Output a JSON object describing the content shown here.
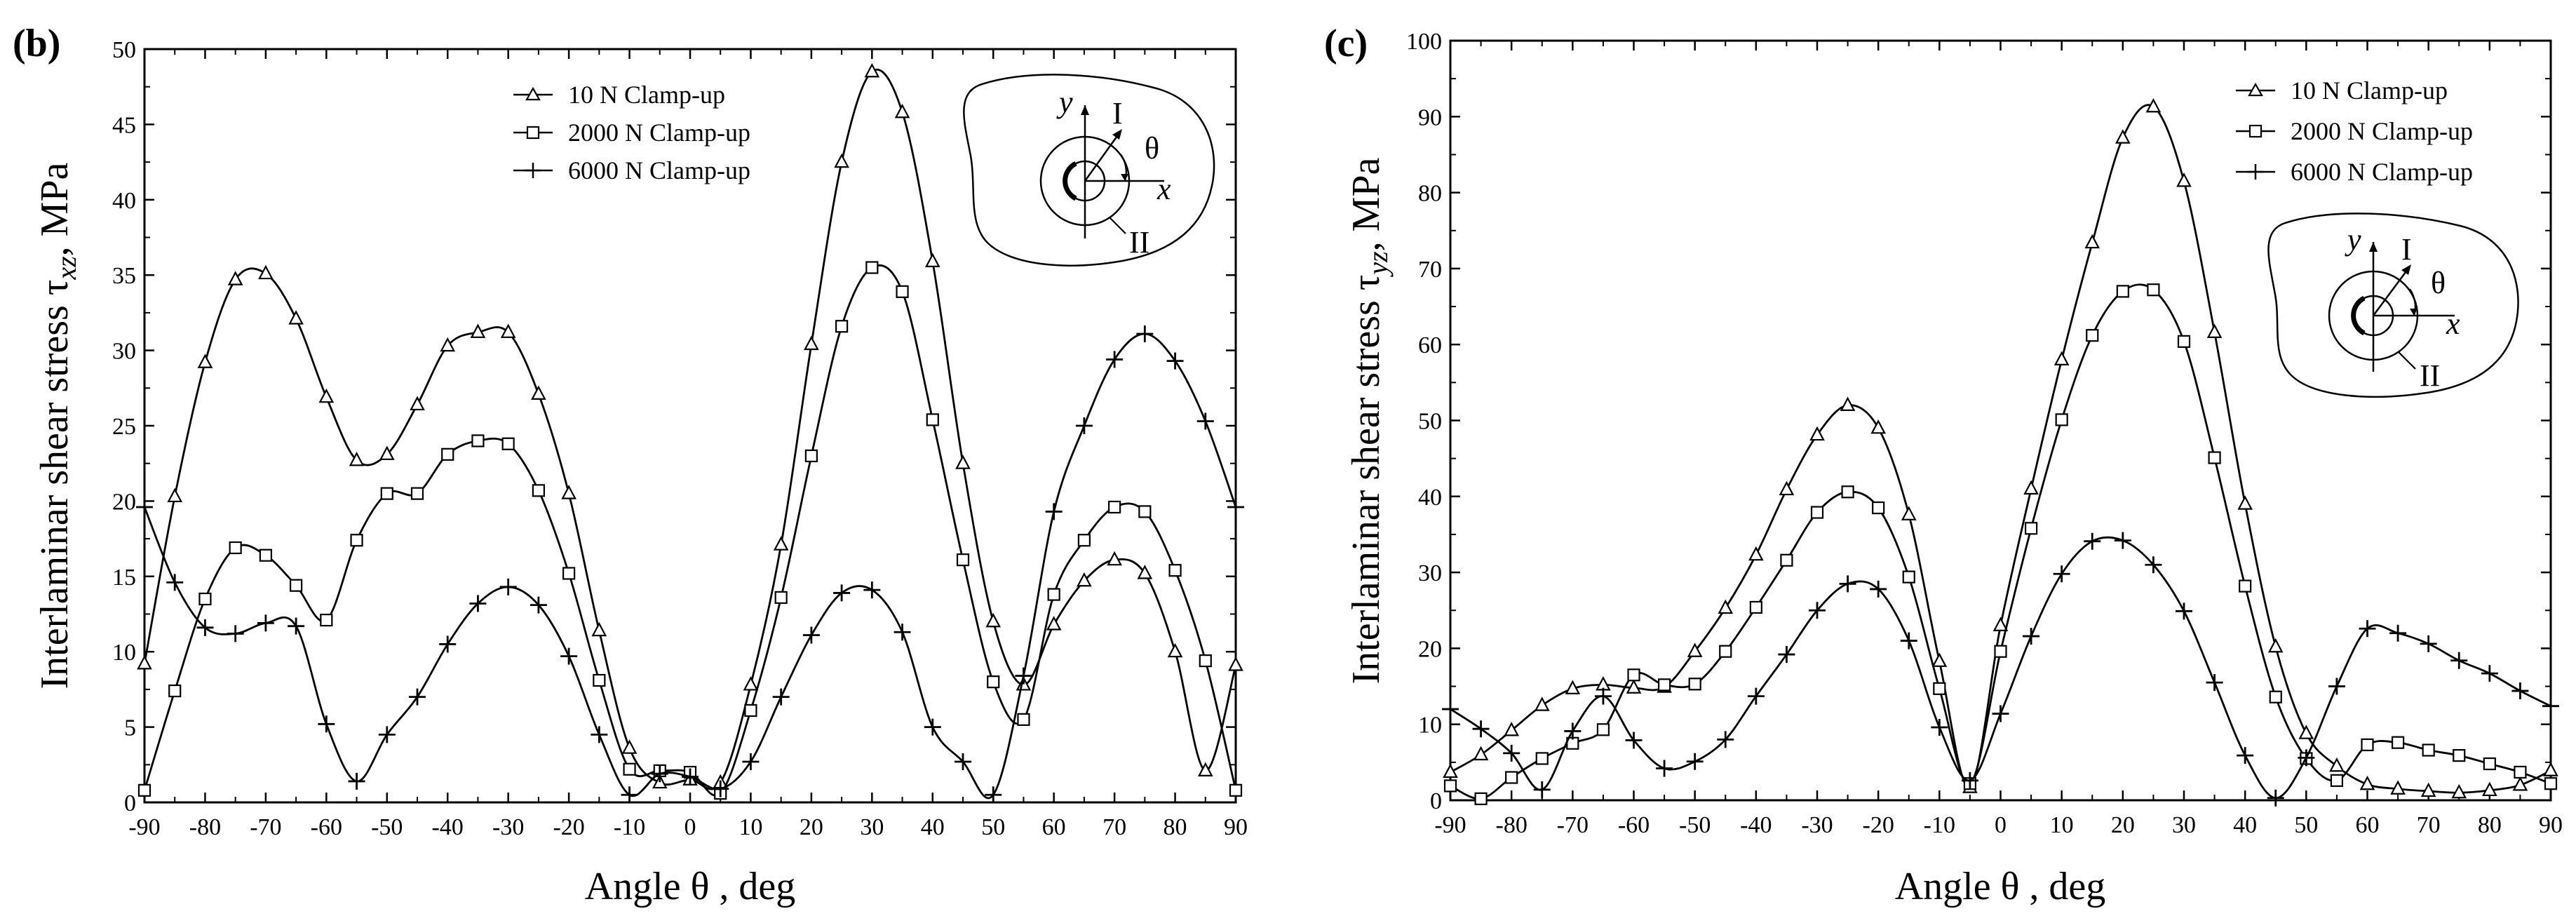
{
  "chart_data": [
    {
      "type": "line",
      "panel_label": "(b)",
      "xlabel": "Angle θ , deg",
      "ylabel": "Interlaminar shear stress τxz, MPa",
      "ylabel_parts": {
        "main": "Interlaminar shear stress τ",
        "sub": "xz",
        "tail": ", MPa"
      },
      "xlim": [
        -90,
        90
      ],
      "ylim": [
        0,
        50
      ],
      "xticks": [
        -90,
        -80,
        -70,
        -60,
        -50,
        -40,
        -30,
        -20,
        -10,
        0,
        10,
        20,
        30,
        40,
        50,
        60,
        70,
        80,
        90
      ],
      "yticks": [
        0,
        5,
        10,
        15,
        20,
        25,
        30,
        35,
        40,
        45,
        50
      ],
      "x": [
        -90,
        -85,
        -80,
        -75,
        -70,
        -65,
        -60,
        -55,
        -50,
        -45,
        -40,
        -35,
        -30,
        -25,
        -20,
        -15,
        -10,
        -5,
        0,
        5,
        10,
        15,
        20,
        25,
        30,
        35,
        40,
        45,
        50,
        55,
        60,
        65,
        70,
        75,
        80,
        85,
        90
      ],
      "series": [
        {
          "name": "10 N Clamp-up",
          "marker": "triangle",
          "values": [
            9.2,
            20.3,
            29.2,
            34.7,
            35.1,
            32.1,
            26.9,
            22.7,
            23.1,
            26.4,
            30.3,
            31.2,
            31.2,
            27.1,
            20.5,
            11.4,
            3.6,
            1.3,
            1.5,
            1.3,
            7.8,
            17.1,
            30.4,
            42.5,
            48.5,
            45.8,
            35.9,
            22.5,
            12.0,
            7.8,
            11.8,
            14.7,
            16.1,
            15.2,
            10.0,
            2.1,
            9.1
          ]
        },
        {
          "name": "2000 N Clamp-up",
          "marker": "square",
          "values": [
            0.8,
            7.4,
            13.5,
            16.9,
            16.4,
            14.4,
            12.1,
            17.4,
            20.5,
            20.5,
            23.1,
            24.0,
            23.8,
            20.7,
            15.2,
            8.1,
            2.2,
            2.1,
            2.0,
            0.6,
            6.1,
            13.6,
            23.0,
            31.6,
            35.5,
            33.9,
            25.4,
            16.1,
            8.0,
            5.5,
            13.8,
            17.4,
            19.6,
            19.3,
            15.4,
            9.4,
            0.8
          ]
        },
        {
          "name": "6000 N Clamp-up",
          "marker": "plus",
          "values": [
            19.6,
            14.6,
            11.6,
            11.2,
            11.9,
            11.7,
            5.2,
            1.4,
            4.5,
            7.0,
            10.5,
            13.2,
            14.3,
            13.1,
            9.7,
            4.5,
            0.5,
            1.9,
            1.7,
            0.9,
            2.7,
            7.0,
            11.1,
            13.9,
            14.1,
            11.3,
            5.0,
            2.7,
            0.5,
            8.4,
            19.3,
            25.0,
            29.4,
            31.1,
            29.3,
            25.3,
            19.6
          ]
        }
      ],
      "legend": {
        "position": "top-center"
      },
      "inset": {
        "labels": {
          "y": "y",
          "x": "x",
          "theta": "θ",
          "I": "I",
          "II": "II"
        }
      }
    },
    {
      "type": "line",
      "panel_label": "(c)",
      "xlabel": "Angle θ , deg",
      "ylabel": "Interlaminar shear stress τyz, MPa",
      "ylabel_parts": {
        "main": "Interlaminar shear stress τ",
        "sub": "yz",
        "tail": ", MPa"
      },
      "xlim": [
        -90,
        90
      ],
      "ylim": [
        0,
        100
      ],
      "xticks": [
        -90,
        -80,
        -70,
        -60,
        -50,
        -40,
        -30,
        -20,
        -10,
        0,
        10,
        20,
        30,
        40,
        50,
        60,
        70,
        80,
        90
      ],
      "yticks": [
        0,
        10,
        20,
        30,
        40,
        50,
        60,
        70,
        80,
        90,
        100
      ],
      "x": [
        -90,
        -85,
        -80,
        -75,
        -70,
        -65,
        -60,
        -55,
        -50,
        -45,
        -40,
        -35,
        -30,
        -25,
        -20,
        -15,
        -10,
        -5,
        0,
        5,
        10,
        15,
        20,
        25,
        30,
        35,
        40,
        45,
        50,
        55,
        60,
        65,
        70,
        75,
        80,
        85,
        90
      ],
      "series": [
        {
          "name": "10 N Clamp-up",
          "marker": "triangle",
          "values": [
            3.7,
            6.0,
            9.2,
            12.5,
            14.7,
            15.2,
            14.8,
            14.9,
            19.6,
            25.3,
            32.3,
            40.9,
            48.1,
            52.0,
            49.0,
            37.6,
            18.3,
            1.7,
            23.0,
            41.0,
            58.0,
            73.4,
            87.2,
            91.3,
            81.5,
            61.6,
            39.0,
            20.2,
            8.8,
            4.5,
            2.1,
            1.5,
            1.2,
            1.0,
            1.3,
            2.0,
            3.9
          ]
        },
        {
          "name": "2000 N Clamp-up",
          "marker": "square",
          "values": [
            1.9,
            0.2,
            3.0,
            5.5,
            7.5,
            9.3,
            16.5,
            15.2,
            15.3,
            19.6,
            25.4,
            31.6,
            37.9,
            40.6,
            38.5,
            29.4,
            14.7,
            2.2,
            19.6,
            35.8,
            50.1,
            61.2,
            67.0,
            67.2,
            60.4,
            45.1,
            28.2,
            13.6,
            5.5,
            2.6,
            7.3,
            7.6,
            6.6,
            5.9,
            4.8,
            3.7,
            2.2
          ]
        },
        {
          "name": "6000 N Clamp-up",
          "marker": "plus",
          "values": [
            12.0,
            9.4,
            6.2,
            1.4,
            9.1,
            13.7,
            7.9,
            4.2,
            5.1,
            8.0,
            13.7,
            19.2,
            25.0,
            28.5,
            27.8,
            21.0,
            9.6,
            2.6,
            11.4,
            21.6,
            29.8,
            34.1,
            34.2,
            31.0,
            24.9,
            15.5,
            5.9,
            0.3,
            5.6,
            15.0,
            22.6,
            22.0,
            20.6,
            18.4,
            16.7,
            14.4,
            12.4
          ]
        }
      ],
      "legend": {
        "position": "top-right"
      },
      "inset": {
        "labels": {
          "y": "y",
          "x": "x",
          "theta": "θ",
          "I": "I",
          "II": "II"
        }
      }
    }
  ]
}
